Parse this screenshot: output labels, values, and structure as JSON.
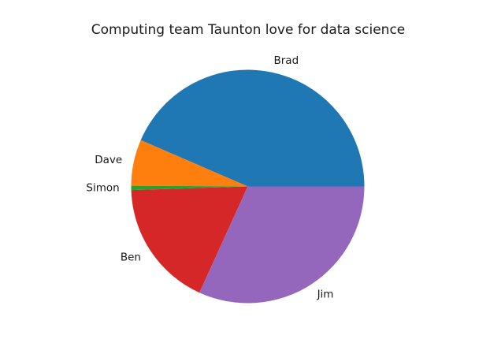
{
  "chart_data": {
    "type": "pie",
    "title": "Computing team Taunton love for data science",
    "slices": [
      {
        "label": "Brad",
        "value": 43.5,
        "color": "#1f77b4"
      },
      {
        "label": "Dave",
        "value": 6.4,
        "color": "#ff7f0e"
      },
      {
        "label": "Simon",
        "value": 0.6,
        "color": "#2ca02c"
      },
      {
        "label": "Ben",
        "value": 17.7,
        "color": "#d62728"
      },
      {
        "label": "Jim",
        "value": 31.8,
        "color": "#9467bd"
      }
    ],
    "start_angle_deg": 0,
    "direction": "counterclockwise"
  }
}
